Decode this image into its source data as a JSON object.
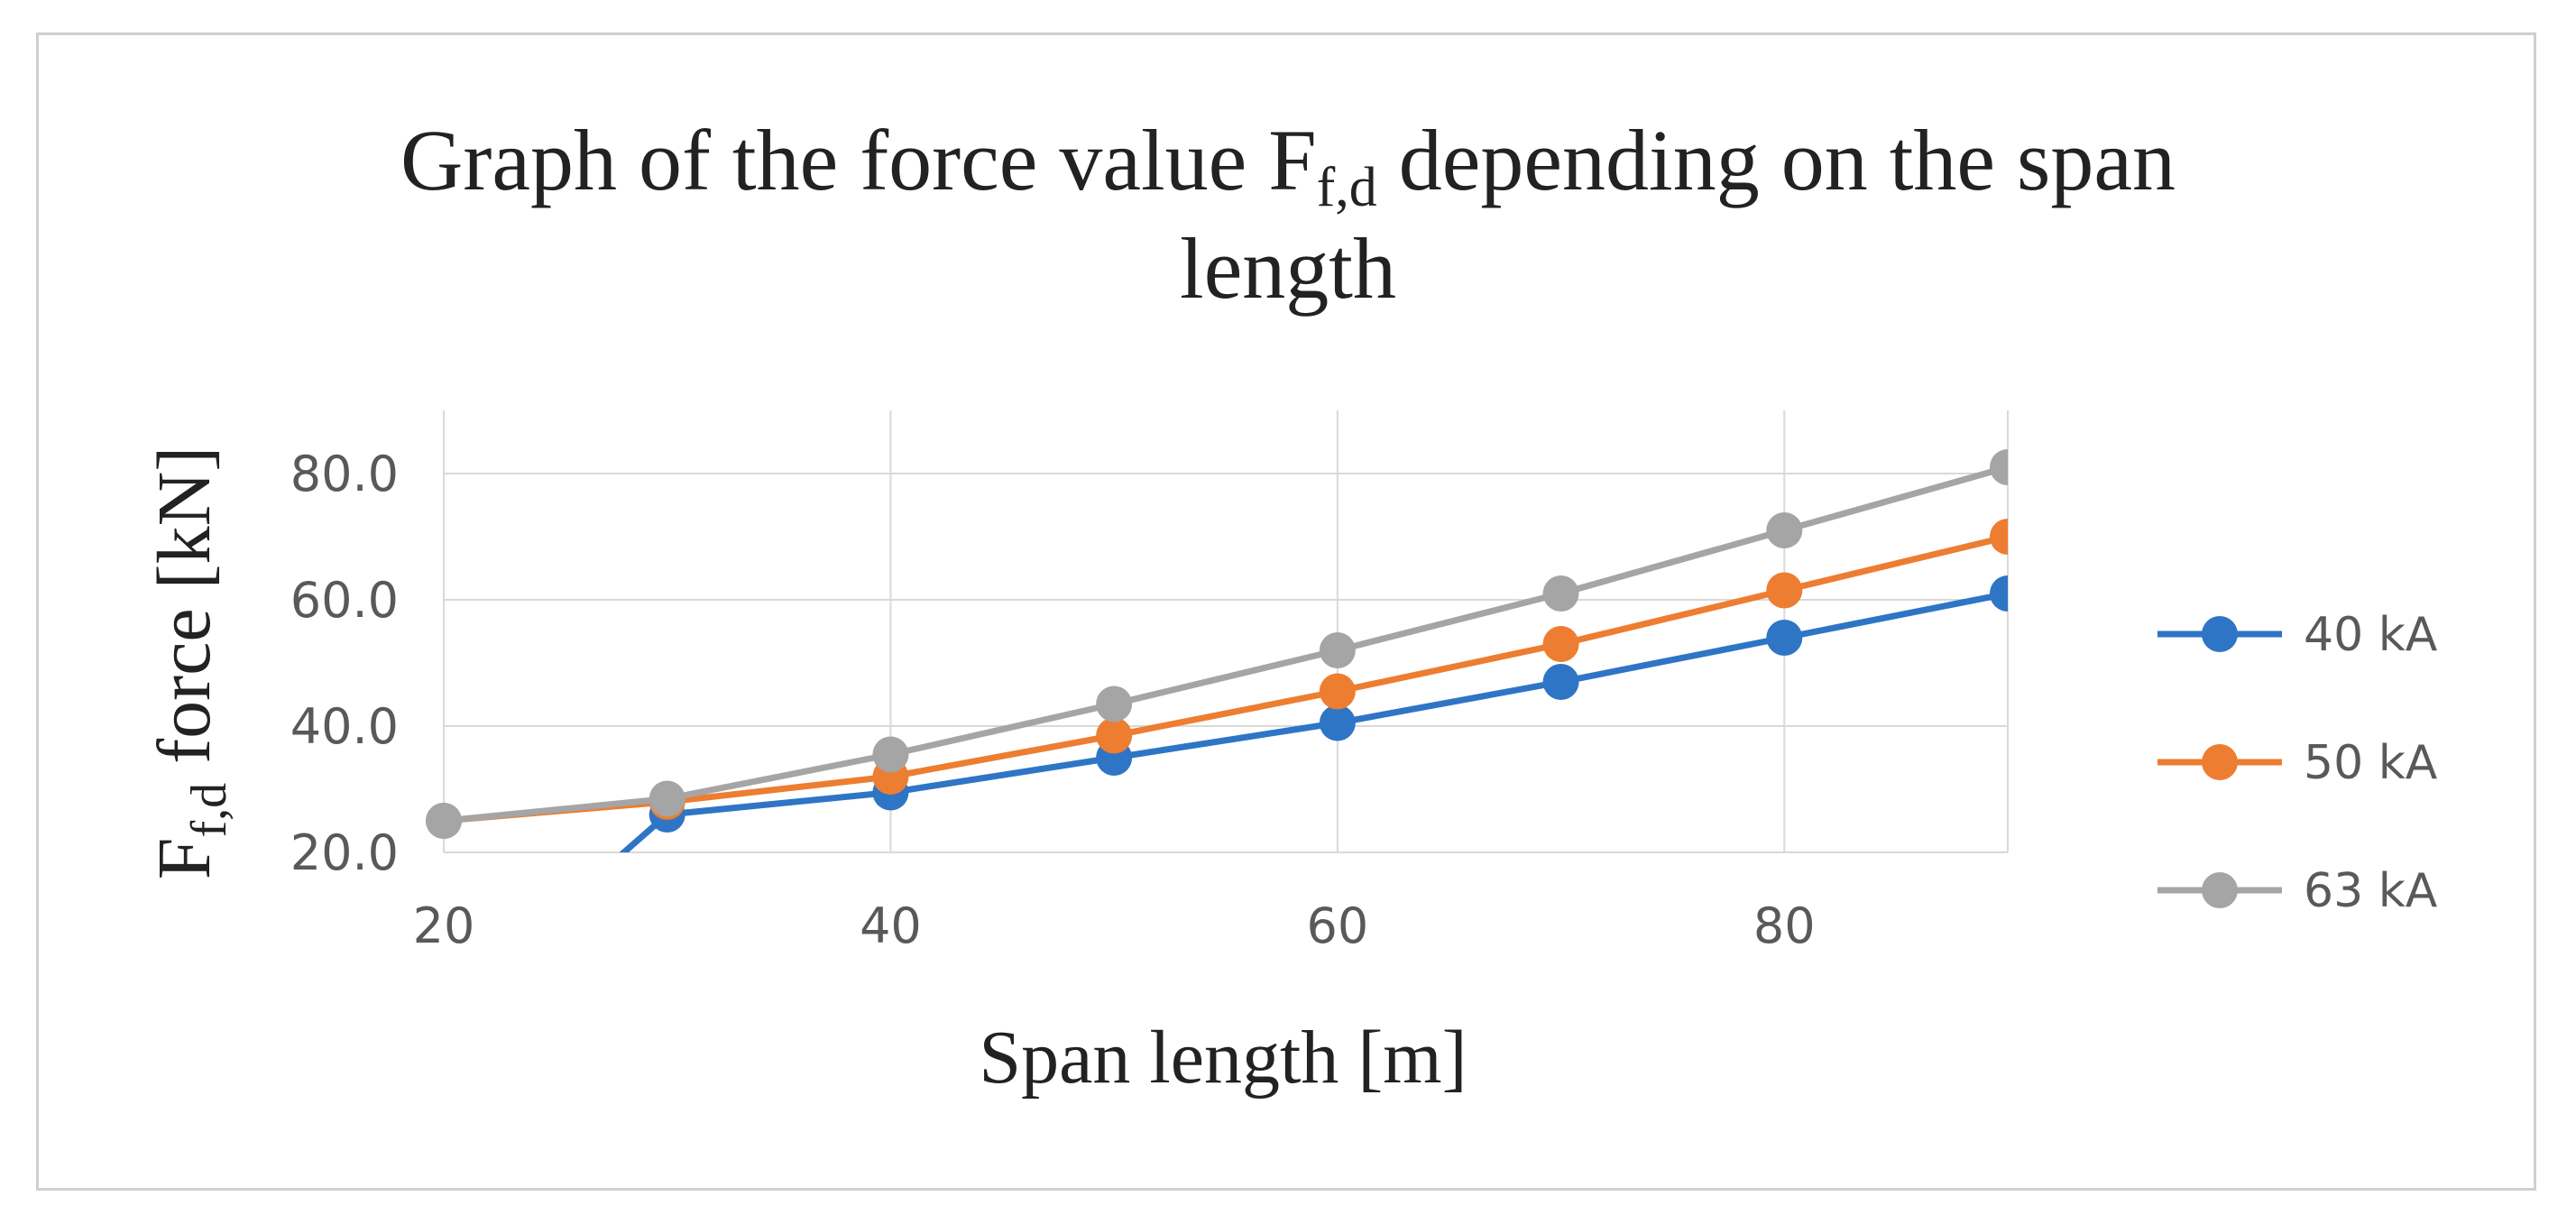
{
  "chart_data": {
    "type": "line",
    "title": {
      "line1_prefix": "Graph of the force value F",
      "line1_sub": "f,d",
      "line1_suffix": " depending on the span",
      "line2": "length"
    },
    "xlabel": "Span length [m]",
    "ylabel": {
      "main": "F",
      "sub": "f,d",
      "rest": " force [kN]"
    },
    "x": [
      20,
      30,
      40,
      50,
      60,
      70,
      80,
      90
    ],
    "xlim": [
      20,
      90
    ],
    "ylim": [
      20,
      90
    ],
    "x_ticks": [
      20,
      40,
      60,
      80
    ],
    "y_ticks": [
      20,
      40,
      60,
      80
    ],
    "y_tick_labels": [
      "20.0",
      "40.0",
      "60.0",
      "80.0"
    ],
    "x_tick_labels": [
      "20",
      "40",
      "60",
      "80"
    ],
    "grid": true,
    "legend_position": "right",
    "series": [
      {
        "name": "40 kA",
        "color": "#2e75c5",
        "values": [
          -5.0,
          26.0,
          29.5,
          35.0,
          40.5,
          47.0,
          54.0,
          61.0
        ]
      },
      {
        "name": "50 kA",
        "color": "#ed7d31",
        "values": [
          25.0,
          28.0,
          32.0,
          38.5,
          45.5,
          53.0,
          61.5,
          70.0
        ]
      },
      {
        "name": "63 kA",
        "color": "#a5a5a5",
        "values": [
          25.0,
          28.5,
          35.5,
          43.5,
          52.0,
          61.0,
          71.0,
          81.0
        ]
      }
    ]
  }
}
